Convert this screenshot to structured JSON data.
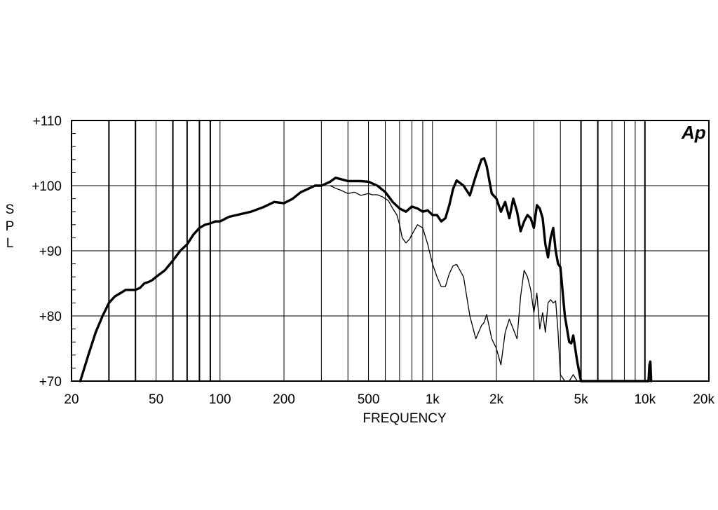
{
  "chart_data": {
    "type": "line",
    "title": "",
    "xlabel": "FREQUENCY",
    "ylabel": "SPL",
    "xscale": "log",
    "xlim": [
      20,
      20000
    ],
    "ylim": [
      70,
      110
    ],
    "grid": true,
    "logo": "Ap",
    "x_tick_labels": [
      {
        "value": 20,
        "label": "20"
      },
      {
        "value": 50,
        "label": "50"
      },
      {
        "value": 100,
        "label": "100"
      },
      {
        "value": 200,
        "label": "200"
      },
      {
        "value": 500,
        "label": "500"
      },
      {
        "value": 1000,
        "label": "1k"
      },
      {
        "value": 2000,
        "label": "2k"
      },
      {
        "value": 5000,
        "label": "5k"
      },
      {
        "value": 10000,
        "label": "10k"
      },
      {
        "value": 20000,
        "label": "20k"
      }
    ],
    "y_tick_labels": [
      {
        "value": 110,
        "label": "+110"
      },
      {
        "value": 100,
        "label": "+100"
      },
      {
        "value": 90,
        "label": "+90"
      },
      {
        "value": 80,
        "label": "+80"
      },
      {
        "value": 70,
        "label": "+70"
      }
    ],
    "grid_x": [
      20,
      30,
      40,
      50,
      60,
      70,
      80,
      90,
      100,
      200,
      300,
      400,
      500,
      600,
      700,
      800,
      900,
      1000,
      2000,
      3000,
      4000,
      5000,
      6000,
      7000,
      8000,
      9000,
      10000,
      20000
    ],
    "grid_x_bold": [
      30,
      40,
      60,
      70,
      80,
      90,
      5000,
      6000,
      10000
    ],
    "grid_y": [
      70,
      80,
      90,
      100,
      110
    ],
    "series": [
      {
        "style": "thick",
        "x": [
          22,
          24,
          26,
          28,
          30,
          32,
          34,
          36,
          38,
          40,
          42,
          44,
          46,
          48,
          50,
          55,
          60,
          65,
          70,
          75,
          80,
          85,
          90,
          95,
          100,
          110,
          120,
          140,
          160,
          180,
          200,
          220,
          240,
          260,
          280,
          300,
          330,
          350,
          370,
          400,
          430,
          460,
          500,
          550,
          600,
          650,
          700,
          750,
          800,
          850,
          900,
          950,
          1000,
          1050,
          1100,
          1150,
          1200,
          1250,
          1300,
          1400,
          1500,
          1600,
          1700,
          1750,
          1800,
          1900,
          2000,
          2100,
          2200,
          2300,
          2400,
          2500,
          2600,
          2700,
          2800,
          2900,
          3000,
          3100,
          3200,
          3300,
          3400,
          3500,
          3600,
          3700,
          3800,
          3900,
          4000,
          4200,
          4400,
          4500,
          4600,
          4800,
          5000,
          10400,
          10500,
          10600,
          10700
        ],
        "y": [
          70,
          74,
          77.5,
          80,
          82,
          83,
          83.5,
          84,
          84,
          84,
          84.3,
          85,
          85.2,
          85.5,
          86,
          87,
          88.5,
          90,
          91,
          92.5,
          93.5,
          94,
          94.2,
          94.5,
          94.5,
          95.2,
          95.5,
          96,
          96.7,
          97.5,
          97.3,
          98,
          99,
          99.5,
          100,
          100,
          100.6,
          101.2,
          101,
          100.7,
          100.7,
          100.7,
          100.6,
          100,
          99,
          97.5,
          96.5,
          96,
          96.8,
          96.5,
          96,
          96.2,
          95.5,
          95.5,
          94.5,
          95,
          97,
          99.5,
          100.8,
          100,
          98.5,
          101.5,
          104,
          104.2,
          103,
          98.8,
          98,
          96,
          97.5,
          95,
          98,
          96,
          93,
          94.5,
          95.5,
          95,
          93.5,
          97,
          96.5,
          95,
          91,
          89,
          92,
          93.5,
          90,
          88,
          87.5,
          80,
          76,
          75.8,
          77,
          73,
          70,
          70,
          72.5,
          73,
          70
        ]
      },
      {
        "style": "thin",
        "x": [
          330,
          350,
          370,
          400,
          430,
          460,
          500,
          520,
          550,
          580,
          600,
          620,
          650,
          680,
          700,
          720,
          750,
          780,
          800,
          850,
          900,
          950,
          1000,
          1050,
          1100,
          1150,
          1200,
          1250,
          1300,
          1400,
          1500,
          1600,
          1700,
          1750,
          1800,
          1900,
          2000,
          2100,
          2200,
          2300,
          2400,
          2500,
          2600,
          2700,
          2800,
          2900,
          3000,
          3100,
          3200,
          3300,
          3400,
          3500,
          3600,
          3700,
          3800,
          3900,
          4000,
          4200,
          4400,
          4600,
          4800
        ],
        "y": [
          100,
          99.6,
          99.3,
          98.8,
          99,
          98.5,
          98.8,
          98.6,
          98.6,
          98.3,
          98,
          97.7,
          96.5,
          95.5,
          94,
          92,
          91.2,
          91.8,
          92.5,
          94,
          93.5,
          91,
          88,
          86,
          84.5,
          84.5,
          86.5,
          87.7,
          87.9,
          86,
          80,
          76.5,
          78.5,
          79,
          80.2,
          76.5,
          75,
          72.5,
          77.5,
          79.5,
          78,
          76.5,
          83,
          87,
          86,
          84,
          80.5,
          83.5,
          78,
          80.5,
          77.5,
          82,
          82.5,
          82,
          82.3,
          77.5,
          71,
          70,
          70,
          71,
          70
        ]
      }
    ]
  }
}
